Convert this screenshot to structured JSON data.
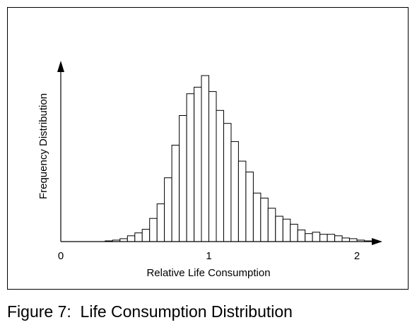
{
  "caption": "Figure 7:  Life Consumption Distribution",
  "chart_data": {
    "type": "bar",
    "title": "",
    "xlabel": "Relative Life Consumption",
    "ylabel": "Frequency Distribution",
    "xticks": [
      "0",
      "1",
      "2"
    ],
    "xlim": [
      0,
      2.2
    ],
    "bin_width": 0.05,
    "bins": [
      {
        "x": 0.3,
        "value": 1
      },
      {
        "x": 0.35,
        "value": 2
      },
      {
        "x": 0.4,
        "value": 4
      },
      {
        "x": 0.45,
        "value": 8
      },
      {
        "x": 0.5,
        "value": 12
      },
      {
        "x": 0.55,
        "value": 17
      },
      {
        "x": 0.6,
        "value": 32
      },
      {
        "x": 0.65,
        "value": 52
      },
      {
        "x": 0.7,
        "value": 88
      },
      {
        "x": 0.75,
        "value": 133
      },
      {
        "x": 0.8,
        "value": 174
      },
      {
        "x": 0.85,
        "value": 204
      },
      {
        "x": 0.9,
        "value": 213
      },
      {
        "x": 0.95,
        "value": 229
      },
      {
        "x": 1.0,
        "value": 207
      },
      {
        "x": 1.05,
        "value": 181
      },
      {
        "x": 1.1,
        "value": 163
      },
      {
        "x": 1.15,
        "value": 138
      },
      {
        "x": 1.2,
        "value": 111
      },
      {
        "x": 1.25,
        "value": 96
      },
      {
        "x": 1.3,
        "value": 67
      },
      {
        "x": 1.35,
        "value": 60
      },
      {
        "x": 1.4,
        "value": 46
      },
      {
        "x": 1.45,
        "value": 35
      },
      {
        "x": 1.5,
        "value": 31
      },
      {
        "x": 1.55,
        "value": 24
      },
      {
        "x": 1.6,
        "value": 16
      },
      {
        "x": 1.65,
        "value": 11
      },
      {
        "x": 1.7,
        "value": 13
      },
      {
        "x": 1.75,
        "value": 10
      },
      {
        "x": 1.8,
        "value": 10
      },
      {
        "x": 1.85,
        "value": 8
      },
      {
        "x": 1.9,
        "value": 5
      },
      {
        "x": 1.95,
        "value": 4
      },
      {
        "x": 2.0,
        "value": 2
      },
      {
        "x": 2.05,
        "value": 1
      }
    ],
    "grid": false,
    "legend": "none",
    "colors": {
      "bar_fill": "#ffffff",
      "bar_stroke": "#000000",
      "axis": "#000000"
    }
  }
}
